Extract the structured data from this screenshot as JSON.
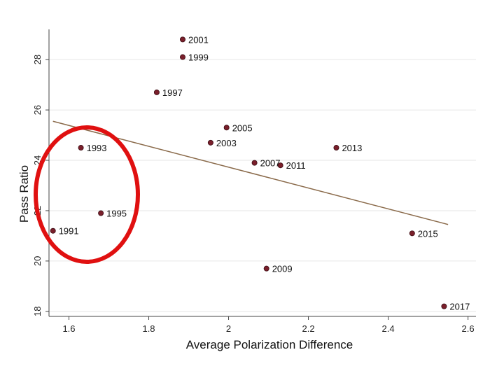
{
  "chart_data": {
    "type": "scatter",
    "xlabel": "Average Polarization Difference",
    "ylabel": "Pass Ratio",
    "xlim": [
      1.55,
      2.62
    ],
    "ylim": [
      17.8,
      29.2
    ],
    "xticks": [
      1.6,
      1.8,
      2,
      2.2,
      2.4,
      2.6
    ],
    "xtick_labels": [
      "1.6",
      "1.8",
      "2",
      "2.2",
      "2.4",
      "2.6"
    ],
    "yticks": [
      18,
      20,
      22,
      24,
      26,
      28
    ],
    "ytick_labels": [
      "18",
      "20",
      "22",
      "24",
      "26",
      "28"
    ],
    "grid": "horizontal",
    "points": [
      {
        "label": "1991",
        "x": 1.56,
        "y": 21.2
      },
      {
        "label": "1993",
        "x": 1.63,
        "y": 24.5
      },
      {
        "label": "1995",
        "x": 1.68,
        "y": 21.9
      },
      {
        "label": "1997",
        "x": 1.82,
        "y": 26.7
      },
      {
        "label": "1999",
        "x": 1.885,
        "y": 28.1
      },
      {
        "label": "2001",
        "x": 1.885,
        "y": 28.8
      },
      {
        "label": "2003",
        "x": 1.955,
        "y": 24.7
      },
      {
        "label": "2005",
        "x": 1.995,
        "y": 25.3
      },
      {
        "label": "2007",
        "x": 2.065,
        "y": 23.9
      },
      {
        "label": "2009",
        "x": 2.095,
        "y": 19.7
      },
      {
        "label": "2011",
        "x": 2.13,
        "y": 23.8
      },
      {
        "label": "2013",
        "x": 2.27,
        "y": 24.5
      },
      {
        "label": "2015",
        "x": 2.46,
        "y": 21.1
      },
      {
        "label": "2017",
        "x": 2.54,
        "y": 18.2
      }
    ],
    "fit_line": {
      "x": [
        1.56,
        2.55
      ],
      "y": [
        25.55,
        21.45
      ]
    },
    "colors": {
      "point": "#7a1f2b",
      "point_edge": "#3a0d14",
      "fit_line": "#8a6a4a",
      "annotation": "#e01010",
      "grid": "#e6e6e6",
      "axis": "#444444"
    }
  }
}
